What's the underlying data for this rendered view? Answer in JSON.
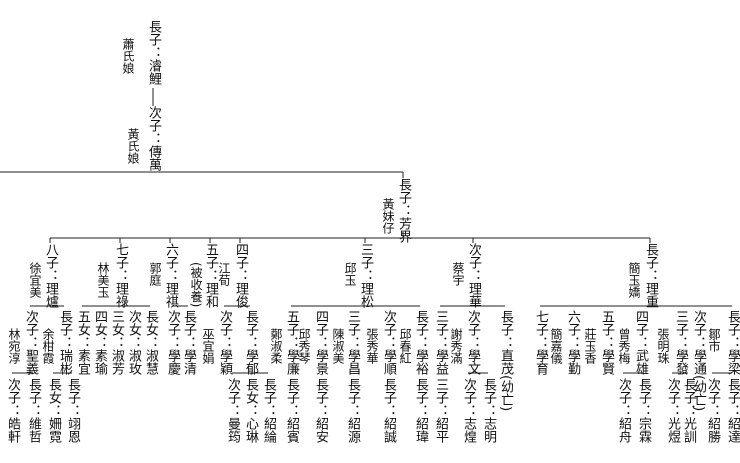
{
  "nodes": [
    "長子：濬鯉",
    "蕭氏娘",
    "次子：傳萬",
    "黃氏娘",
    "長子：芳界",
    "黃妹仔",
    "八子：理爐",
    "徐宜美",
    "七子：理祿",
    "林美玉",
    "六子：理祺",
    "郭庭",
    "五子：理和",
    "(被收養)",
    "四子：理俊",
    "江荀",
    "三子：理松",
    "邱玉",
    "次子：理華",
    "蔡宇",
    "長子：理重",
    "簡玉嬌",
    "林宛淳",
    "次子：聖義",
    "余柑霞",
    "長子：瑞彬",
    "五女：素宜",
    "四女：素瑜",
    "三女：淑芳",
    "次女：淑玫",
    "長女：淑慧",
    "次子：學慶",
    "長子：學清",
    "巫宜娟",
    "次子：學穎",
    "長子：學郁",
    "鄭淑柔",
    "五子：學廉",
    "邱秀琴",
    "四子：學景",
    "陳淑美",
    "三子：學昌",
    "張秀華",
    "次子：學順",
    "邱春紅",
    "長子：學裕",
    "三子：學益",
    "謝秀滿",
    "次子：學文",
    "長子：直茂(幼亡)",
    "七子：學育",
    "簡嘉儀",
    "六子：學勤",
    "莊玉香",
    "五子：學賢",
    "曾秀梅",
    "四子：武雄",
    "張明珠",
    "三子：學發",
    "次子：學通(幼亡)",
    "鄒市",
    "長子：學梁",
    "次子：皓軒",
    "長子：維哲",
    "長女：姍霓",
    "長子：翊恩",
    "次子：曼筠",
    "長女：心琳",
    "長子：紹綸",
    "長子：紹賓",
    "長子：紹安",
    "長子：紹源",
    "長子：紹誠",
    "長子：紹瑋",
    "三子：紹平",
    "次子：志煌",
    "長子：志明",
    "次子：紹舟",
    "長子：宗霖",
    "次子：光煜",
    "長子：光訓",
    "次子：紹勝",
    "長子：紹達"
  ]
}
